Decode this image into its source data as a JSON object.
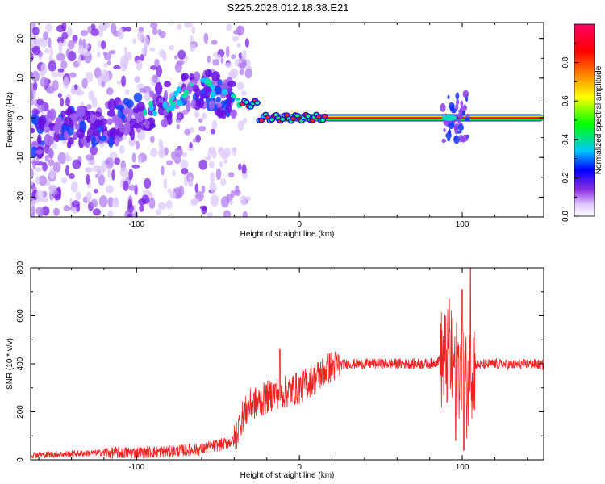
{
  "title": "S225.2026.012.18.38.E21",
  "chart_data": [
    {
      "type": "heatmap",
      "xlabel": "Height of straight line (km)",
      "ylabel": "Frequency (Hz)",
      "xlim": [
        -165,
        150
      ],
      "ylim": [
        -25,
        24
      ],
      "x_ticks": [
        -100,
        0,
        100
      ],
      "y_ticks": [
        -20,
        -10,
        0,
        10,
        20
      ],
      "colorbar": {
        "label": "Normalized spectral amplitude",
        "range": [
          0,
          1
        ],
        "ticks": [
          0.0,
          0.2,
          0.4,
          0.6,
          0.8
        ],
        "colors": [
          "#ffffff",
          "#8a2be2",
          "#0000ff",
          "#00c8ff",
          "#00ff00",
          "#ffff00",
          "#ff8000",
          "#ff0000",
          "#ff0066"
        ]
      },
      "features": [
        {
          "kind": "scattered-noise",
          "x_range": [
            -165,
            -40
          ],
          "f_range": [
            -25,
            24
          ],
          "amplitude": 0.15
        },
        {
          "kind": "rising-band",
          "points": [
            [
              -165,
              -5
            ],
            [
              -100,
              0
            ],
            [
              -60,
              8
            ],
            [
              -40,
              4
            ]
          ],
          "amplitude": 0.3
        },
        {
          "kind": "narrow-line",
          "x_range": [
            -35,
            150
          ],
          "frequency": 0,
          "amplitude": 0.85
        },
        {
          "kind": "burst",
          "x_center": 100,
          "f_range": [
            -6,
            6
          ],
          "amplitude": 0.3
        }
      ]
    },
    {
      "type": "line",
      "xlabel": "Height of straight line (km)",
      "ylabel": "SNR (10 * v/v)",
      "xlim": [
        -165,
        150
      ],
      "ylim": [
        0,
        800
      ],
      "x_ticks": [
        -100,
        0,
        100
      ],
      "y_ticks": [
        0,
        200,
        400,
        600,
        800
      ],
      "series": [
        {
          "color": "#ee2222",
          "x": [
            -165,
            -140,
            -120,
            -100,
            -80,
            -60,
            -50,
            -40,
            -35,
            -30,
            -25,
            -20,
            -15,
            -10,
            -5,
            0,
            5,
            10,
            15,
            20,
            25,
            30,
            40,
            50,
            60,
            70,
            80,
            85,
            90,
            95,
            100,
            103,
            105,
            107,
            110,
            120,
            130,
            140,
            150
          ],
          "values": [
            20,
            25,
            30,
            30,
            35,
            45,
            60,
            80,
            180,
            230,
            240,
            260,
            280,
            280,
            290,
            300,
            320,
            340,
            370,
            390,
            395,
            400,
            400,
            400,
            400,
            400,
            400,
            410,
            420,
            400,
            380,
            300,
            380,
            400,
            395,
            400,
            395,
            400,
            395
          ],
          "peaks": [
            {
              "x": -12,
              "value": 460
            },
            {
              "x": 92,
              "value": 670
            },
            {
              "x": 100,
              "value": 710
            },
            {
              "x": 105,
              "value": 800
            }
          ],
          "troughs": [
            {
              "x": 96,
              "value": 80
            },
            {
              "x": 101,
              "value": 40
            }
          ]
        }
      ]
    }
  ]
}
